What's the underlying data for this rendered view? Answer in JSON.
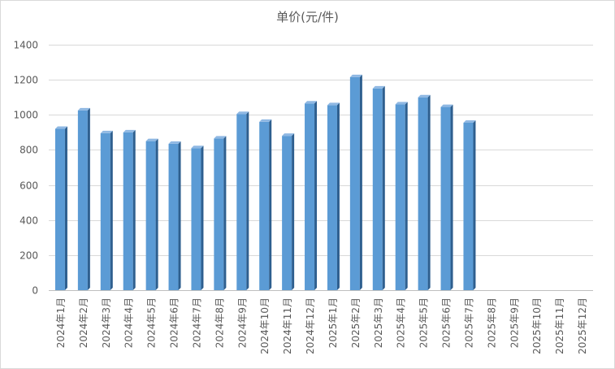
{
  "chart_data": {
    "type": "bar",
    "title": "单价(元/件)",
    "xlabel": "",
    "ylabel": "",
    "ylim": [
      0,
      1400
    ],
    "yticks": [
      0,
      200,
      400,
      600,
      800,
      1000,
      1200,
      1400
    ],
    "grid": true,
    "legend": "none",
    "categories": [
      "2024年1月",
      "2024年2月",
      "2024年3月",
      "2024年4月",
      "2024年5月",
      "2024年6月",
      "2024年7月",
      "2024年8月",
      "2024年9月",
      "2024年10月",
      "2024年11月",
      "2024年12月",
      "2025年1月",
      "2025年2月",
      "2025年3月",
      "2025年4月",
      "2025年5月",
      "2025年6月",
      "2025年7月",
      "2025年8月",
      "2025年9月",
      "2025年10月",
      "2025年11月",
      "2025年12月"
    ],
    "values": [
      920,
      1025,
      895,
      900,
      850,
      835,
      810,
      865,
      1005,
      960,
      880,
      1065,
      1055,
      1215,
      1150,
      1060,
      1100,
      1045,
      955,
      null,
      null,
      null,
      null,
      null
    ],
    "colors": {
      "front": "#5b9bd5",
      "side": "#2e5f8f",
      "top": "#8fb8e3",
      "grid": "#d9d9d9",
      "text": "#595959"
    }
  }
}
